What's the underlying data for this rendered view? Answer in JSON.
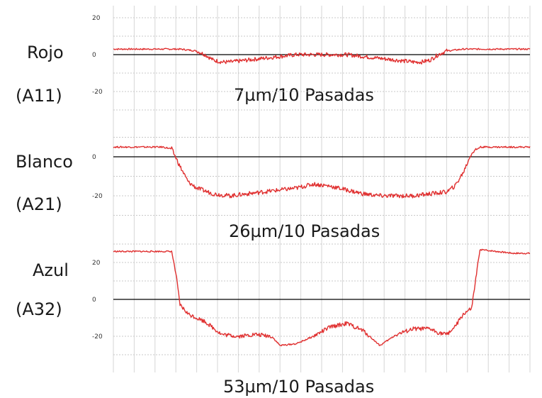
{
  "chart_data": [
    {
      "type": "line",
      "name": "Rojo",
      "code": "(A11)",
      "annotation": "7µm/10 Pasadas",
      "yticks": [
        "20",
        "0",
        "-20"
      ],
      "ylim": [
        -38,
        30
      ],
      "x": [
        0,
        0.04,
        0.08,
        0.12,
        0.16,
        0.2,
        0.22,
        0.24,
        0.26,
        0.28,
        0.32,
        0.36,
        0.4,
        0.44,
        0.48,
        0.52,
        0.56,
        0.6,
        0.64,
        0.68,
        0.72,
        0.74,
        0.76,
        0.78,
        0.8,
        0.84,
        0.88,
        0.92,
        0.96,
        1.0
      ],
      "values": [
        3,
        3,
        3,
        3,
        3,
        2,
        0,
        -3,
        -4,
        -4,
        -3,
        -2,
        -1,
        0,
        0,
        0,
        0,
        -1,
        -2,
        -3,
        -4,
        -4,
        -3,
        0,
        2,
        3,
        3,
        3,
        3,
        3
      ],
      "color": "#e03030"
    },
    {
      "type": "line",
      "name": "Blanco",
      "code": "(A21)",
      "annotation": "26µm/10 Pasadas",
      "yticks": [
        "0",
        "-20"
      ],
      "ylim": [
        -38,
        28
      ],
      "x": [
        0,
        0.04,
        0.08,
        0.12,
        0.14,
        0.16,
        0.18,
        0.2,
        0.24,
        0.28,
        0.32,
        0.36,
        0.4,
        0.44,
        0.48,
        0.52,
        0.56,
        0.6,
        0.64,
        0.68,
        0.72,
        0.76,
        0.8,
        0.82,
        0.84,
        0.86,
        0.88,
        0.9,
        0.94,
        1.0
      ],
      "values": [
        5,
        5,
        5,
        5,
        4,
        -5,
        -13,
        -16,
        -19,
        -20,
        -19,
        -18,
        -17,
        -16,
        -14,
        -15,
        -17,
        -19,
        -20,
        -20,
        -20,
        -19,
        -18,
        -15,
        -8,
        2,
        5,
        5,
        5,
        5
      ],
      "color": "#e03030"
    },
    {
      "type": "line",
      "name": "Azul",
      "code": "(A32)",
      "annotation": "53µm/10 Pasadas",
      "yticks": [
        "20",
        "0",
        "-20"
      ],
      "ylim": [
        -42,
        32
      ],
      "x": [
        0,
        0.04,
        0.08,
        0.12,
        0.14,
        0.15,
        0.16,
        0.18,
        0.22,
        0.26,
        0.3,
        0.34,
        0.38,
        0.4,
        0.44,
        0.48,
        0.52,
        0.56,
        0.6,
        0.64,
        0.68,
        0.72,
        0.76,
        0.78,
        0.8,
        0.82,
        0.84,
        0.86,
        0.88,
        0.92,
        0.96,
        1.0
      ],
      "values": [
        26,
        26,
        26,
        26,
        26,
        14,
        -3,
        -8,
        -12,
        -19,
        -20,
        -19,
        -20,
        -25,
        -24,
        -20,
        -15,
        -13,
        -17,
        -25,
        -19,
        -16,
        -16,
        -18,
        -19,
        -15,
        -8,
        -5,
        27,
        26,
        25,
        25
      ],
      "color": "#e03030"
    }
  ]
}
